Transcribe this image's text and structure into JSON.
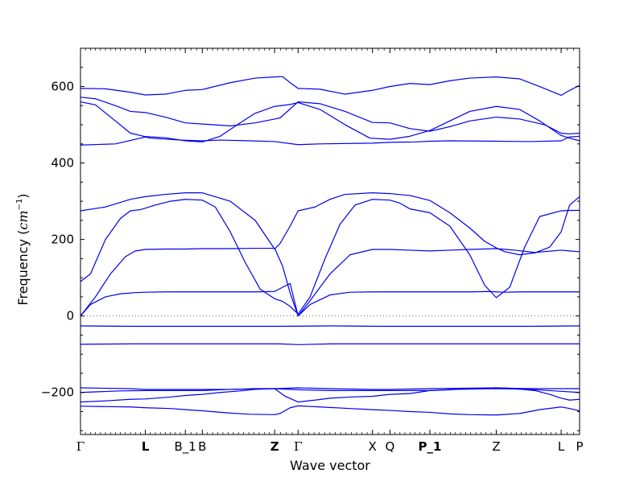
{
  "chart_data": {
    "type": "line",
    "title": "",
    "xlabel": "Wave vector",
    "ylabel": "Frequency (cm$^{-1}$)",
    "ylabel_parts": {
      "text": "Frequency (",
      "unit": "cm",
      "exponent": "−1",
      "close": ")"
    },
    "ylim": [
      -310,
      700
    ],
    "yticks": [
      600,
      400,
      200,
      0,
      -200
    ],
    "ytick_labels": [
      "600",
      "400",
      "200",
      "0",
      "−200"
    ],
    "xlim": [
      0,
      100
    ],
    "xticks": [
      0,
      13,
      21,
      24.4,
      38.9,
      43.6,
      58.5,
      62,
      70,
      83.3,
      96.3,
      100
    ],
    "xtick_labels": [
      "Γ",
      "L",
      "B_1",
      "B",
      "Z",
      "Γ",
      "X",
      "Q",
      "P_1",
      "Z",
      "L",
      "P"
    ],
    "xtick_bold": [
      false,
      true,
      false,
      false,
      true,
      false,
      false,
      false,
      true,
      false,
      false,
      false
    ],
    "zero_line": true,
    "series": [
      {
        "x": [
          0,
          5,
          10,
          13,
          17,
          21,
          24.4,
          30,
          35,
          38.9,
          40.5,
          42,
          43.6,
          48,
          53,
          58.5,
          62,
          66,
          70,
          74,
          78,
          83.3,
          88,
          92,
          96.3,
          98,
          100
        ],
        "y": [
          595,
          594,
          585,
          578,
          580,
          590,
          592,
          610,
          622,
          625,
          626,
          610,
          595,
          593,
          580,
          590,
          600,
          608,
          605,
          615,
          622,
          625,
          620,
          600,
          577,
          590,
          603
        ]
      },
      {
        "x": [
          0,
          3,
          7,
          10,
          13,
          17,
          21,
          24.4,
          30,
          35,
          38.9,
          40,
          43.6,
          48,
          53,
          58.5,
          62,
          66,
          70,
          74,
          78,
          83.3,
          88,
          93,
          96.3,
          98,
          100
        ],
        "y": [
          572,
          568,
          550,
          535,
          532,
          520,
          505,
          502,
          497,
          505,
          515,
          518,
          560,
          555,
          535,
          506,
          505,
          490,
          483,
          495,
          510,
          520,
          515,
          500,
          478,
          476,
          478
        ]
      },
      {
        "x": [
          0,
          3,
          7,
          10,
          13,
          17,
          21,
          24.4,
          28,
          32,
          35,
          38.9,
          42,
          43.6,
          48,
          53,
          58,
          62,
          66,
          70,
          74,
          78,
          83.3,
          88,
          92,
          96.3,
          98,
          100
        ],
        "y": [
          560,
          552,
          510,
          478,
          469,
          466,
          458,
          455,
          470,
          505,
          530,
          548,
          553,
          558,
          540,
          500,
          465,
          462,
          470,
          485,
          510,
          535,
          548,
          540,
          510,
          472,
          465,
          458
        ]
      },
      {
        "x": [
          0,
          7,
          12,
          13,
          14,
          20,
          24.4,
          28,
          34,
          38.9,
          43.6,
          48,
          58.5,
          62,
          67,
          70,
          74,
          83.3,
          90,
          96.3,
          98,
          100
        ],
        "y": [
          447,
          450,
          465,
          468,
          465,
          460,
          458,
          460,
          458,
          456,
          448,
          450,
          452,
          454,
          455,
          457,
          458,
          457,
          456,
          458,
          468,
          470
        ]
      },
      {
        "x": [
          0,
          5,
          10,
          13,
          17,
          21,
          24.4,
          30,
          35,
          38.9,
          40,
          42,
          43.6,
          47,
          50,
          53,
          58.5,
          62,
          66,
          70,
          74,
          78,
          81,
          83.3,
          85,
          88,
          91,
          94,
          96.3,
          98,
          100
        ],
        "y": [
          275,
          285,
          305,
          312,
          318,
          322,
          322,
          300,
          250,
          175,
          190,
          235,
          275,
          285,
          305,
          318,
          322,
          320,
          315,
          302,
          270,
          230,
          195,
          178,
          168,
          160,
          165,
          180,
          220,
          290,
          312
        ]
      },
      {
        "x": [
          0,
          2,
          5,
          8,
          10,
          12,
          13,
          15,
          18,
          21,
          24.4,
          27,
          30,
          33,
          36,
          38.9,
          40.5,
          42,
          43.6,
          46,
          49,
          52,
          55,
          58.5,
          62,
          64,
          66,
          70,
          74,
          78,
          81,
          83.3,
          86,
          89,
          92,
          96.3,
          98,
          100
        ],
        "y": [
          90,
          110,
          200,
          255,
          275,
          278,
          282,
          290,
          300,
          305,
          303,
          285,
          220,
          140,
          70,
          45,
          38,
          25,
          5,
          50,
          150,
          240,
          290,
          305,
          303,
          295,
          280,
          270,
          235,
          160,
          80,
          48,
          75,
          180,
          260,
          275,
          276,
          276
        ]
      },
      {
        "x": [
          0,
          3,
          6,
          9,
          11,
          13,
          17,
          21,
          24.4,
          30,
          35,
          38.9,
          40.5,
          42,
          43.6,
          46,
          50,
          54,
          58.5,
          62,
          66,
          70,
          74,
          78,
          83.3,
          87,
          91,
          96.3,
          98,
          100
        ],
        "y": [
          0,
          50,
          110,
          155,
          170,
          174,
          175,
          175,
          176,
          176,
          177,
          177,
          130,
          60,
          0,
          40,
          110,
          160,
          174,
          174,
          172,
          170,
          172,
          174,
          176,
          172,
          166,
          172,
          170,
          168
        ]
      },
      {
        "x": [
          0,
          2,
          5,
          8,
          11,
          13,
          17,
          21,
          24.4,
          30,
          35,
          38.9,
          40.5,
          42,
          43.6,
          46,
          50,
          54,
          58.5,
          62,
          66,
          70,
          74,
          78,
          82,
          83.3,
          85,
          88,
          93,
          96.3,
          98,
          100
        ],
        "y": [
          0,
          30,
          50,
          58,
          61,
          62,
          63,
          63,
          63,
          63,
          63,
          64,
          75,
          85,
          0,
          30,
          55,
          62,
          63,
          63,
          63,
          63,
          63,
          63,
          64,
          63,
          62,
          63,
          63,
          63,
          63,
          63
        ]
      },
      {
        "x": [
          0,
          10,
          20,
          30,
          40,
          50,
          60,
          70,
          80,
          90,
          100
        ],
        "y": [
          -26,
          -27,
          -27,
          -27,
          -27,
          -26,
          -27,
          -27,
          -27,
          -27,
          -26
        ]
      },
      {
        "x": [
          0,
          10,
          20,
          30,
          40,
          43.6,
          50,
          60,
          70,
          80,
          90,
          100
        ],
        "y": [
          -74,
          -73,
          -73,
          -73,
          -73,
          -75,
          -73,
          -73,
          -73,
          -73,
          -73,
          -73
        ]
      },
      {
        "x": [
          0,
          10,
          13,
          20,
          24.4,
          30,
          38.9,
          43.6,
          50,
          58.5,
          62,
          70,
          83.3,
          90,
          96.3,
          100
        ],
        "y": [
          -188,
          -190,
          -192,
          -192,
          -192,
          -192,
          -190,
          -188,
          -190,
          -192,
          -192,
          -190,
          -188,
          -190,
          -190,
          -190
        ]
      },
      {
        "x": [
          0,
          8,
          13,
          20,
          24.4,
          30,
          35,
          38.9,
          43.6,
          50,
          58.5,
          62,
          70,
          75,
          83.3,
          90,
          96.3,
          100
        ],
        "y": [
          -200,
          -196,
          -195,
          -195,
          -195,
          -192,
          -190,
          -190,
          -193,
          -195,
          -195,
          -195,
          -195,
          -192,
          -190,
          -192,
          -197,
          -200
        ]
      },
      {
        "x": [
          0,
          5,
          10,
          13,
          18,
          21,
          24.4,
          28,
          32,
          35,
          38.9,
          41,
          43.6,
          47,
          50,
          54,
          58.5,
          62,
          66,
          70,
          74,
          78,
          83.3,
          87,
          91,
          94,
          96.3,
          98,
          100
        ],
        "y": [
          -225,
          -222,
          -218,
          -217,
          -212,
          -208,
          -205,
          -200,
          -196,
          -192,
          -190,
          -210,
          -225,
          -220,
          -215,
          -212,
          -210,
          -205,
          -203,
          -195,
          -193,
          -190,
          -188,
          -190,
          -195,
          -205,
          -215,
          -220,
          -218
        ]
      },
      {
        "x": [
          0,
          5,
          10,
          13,
          18,
          21,
          24.4,
          30,
          34,
          38.9,
          40,
          42,
          43.6,
          48,
          54,
          58.5,
          62,
          66,
          70,
          74,
          78,
          83.3,
          88,
          92,
          96.3,
          98,
          100
        ],
        "y": [
          -236,
          -237,
          -238,
          -240,
          -242,
          -245,
          -248,
          -254,
          -257,
          -258,
          -255,
          -240,
          -235,
          -238,
          -242,
          -245,
          -247,
          -250,
          -252,
          -256,
          -258,
          -259,
          -255,
          -245,
          -238,
          -242,
          -248
        ]
      }
    ]
  },
  "colors": {
    "line": "#0000ee",
    "axes": "#000000",
    "zero_line": "#666666",
    "background": "#ffffff"
  }
}
